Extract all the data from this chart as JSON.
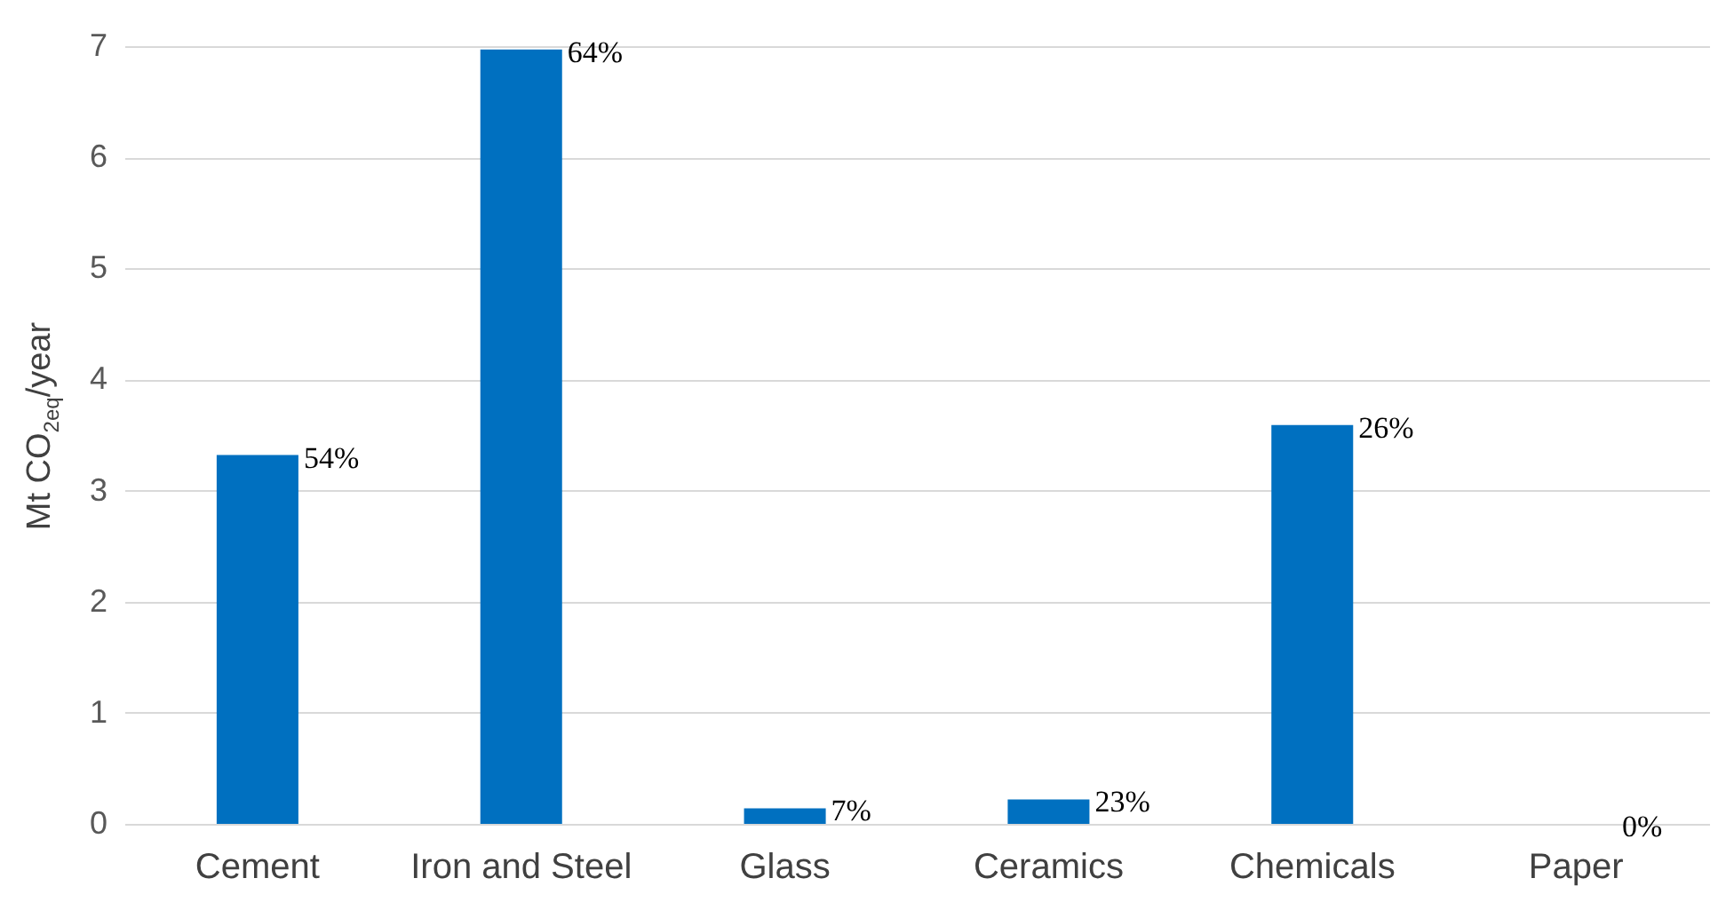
{
  "chart_data": {
    "type": "bar",
    "ylabel": "Mt CO$_{2eq}$/year",
    "categories": [
      "Cement",
      "Iron and Steel",
      "Glass",
      "Ceramics",
      "Chemicals",
      "Paper"
    ],
    "values": [
      3.32,
      6.97,
      0.14,
      0.22,
      3.59,
      0
    ],
    "annotations": [
      {
        "text": "54%",
        "x": "Cement",
        "y": 3.32
      },
      {
        "text": "64%",
        "x": "Iron and Steel",
        "y": 6.97
      },
      {
        "text": "7%",
        "x": "Glass",
        "y": 0.14
      },
      {
        "text": "23%",
        "x": "Ceramics",
        "y": 0.22
      },
      {
        "text": "26%",
        "x": "Chemicals",
        "y": 3.59
      },
      {
        "text": "0%",
        "x": "Paper",
        "y": 0
      }
    ],
    "color": "#0070c0",
    "ylim": [
      0,
      7
    ],
    "yticks": [
      0,
      1,
      2,
      3,
      4,
      5,
      6,
      7
    ],
    "grid": "y"
  }
}
